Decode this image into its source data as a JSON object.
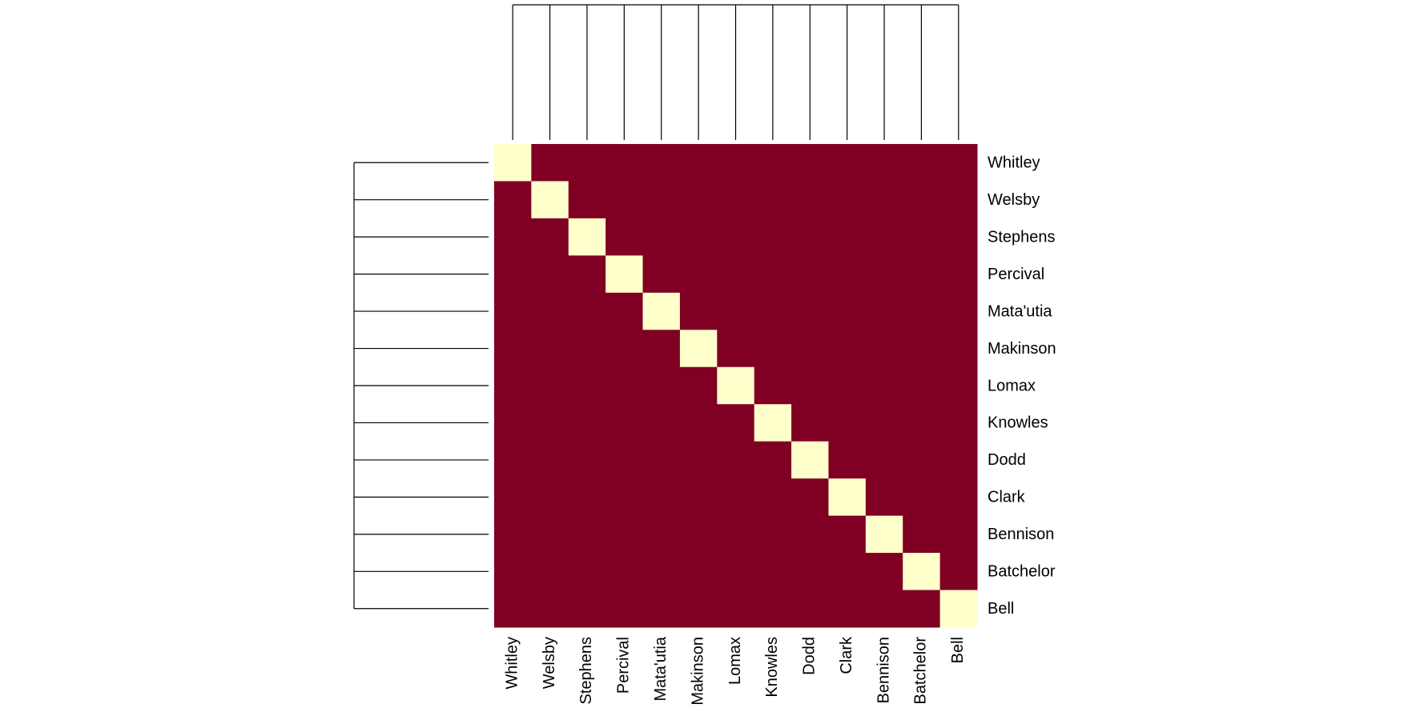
{
  "chart_data": {
    "type": "heatmap",
    "rows": [
      "Whitley",
      "Welsby",
      "Stephens",
      "Percival",
      "Mata'utia",
      "Makinson",
      "Lomax",
      "Knowles",
      "Dodd",
      "Clark",
      "Bennison",
      "Batchelor",
      "Bell"
    ],
    "columns": [
      "Whitley",
      "Welsby",
      "Stephens",
      "Percival",
      "Mata'utia",
      "Makinson",
      "Lomax",
      "Knowles",
      "Dodd",
      "Clark",
      "Bennison",
      "Batchelor",
      "Bell"
    ],
    "values": [
      [
        1,
        0,
        0,
        0,
        0,
        0,
        0,
        0,
        0,
        0,
        0,
        0,
        0
      ],
      [
        0,
        1,
        0,
        0,
        0,
        0,
        0,
        0,
        0,
        0,
        0,
        0,
        0
      ],
      [
        0,
        0,
        1,
        0,
        0,
        0,
        0,
        0,
        0,
        0,
        0,
        0,
        0
      ],
      [
        0,
        0,
        0,
        1,
        0,
        0,
        0,
        0,
        0,
        0,
        0,
        0,
        0
      ],
      [
        0,
        0,
        0,
        0,
        1,
        0,
        0,
        0,
        0,
        0,
        0,
        0,
        0
      ],
      [
        0,
        0,
        0,
        0,
        0,
        1,
        0,
        0,
        0,
        0,
        0,
        0,
        0
      ],
      [
        0,
        0,
        0,
        0,
        0,
        0,
        1,
        0,
        0,
        0,
        0,
        0,
        0
      ],
      [
        0,
        0,
        0,
        0,
        0,
        0,
        0,
        1,
        0,
        0,
        0,
        0,
        0
      ],
      [
        0,
        0,
        0,
        0,
        0,
        0,
        0,
        0,
        1,
        0,
        0,
        0,
        0
      ],
      [
        0,
        0,
        0,
        0,
        0,
        0,
        0,
        0,
        0,
        1,
        0,
        0,
        0
      ],
      [
        0,
        0,
        0,
        0,
        0,
        0,
        0,
        0,
        0,
        0,
        1,
        0,
        0
      ],
      [
        0,
        0,
        0,
        0,
        0,
        0,
        0,
        0,
        0,
        0,
        0,
        1,
        0
      ],
      [
        0,
        0,
        0,
        0,
        0,
        0,
        0,
        0,
        0,
        0,
        0,
        0,
        1
      ]
    ],
    "colors": [
      "#7f0023",
      "#ffffcc"
    ]
  }
}
